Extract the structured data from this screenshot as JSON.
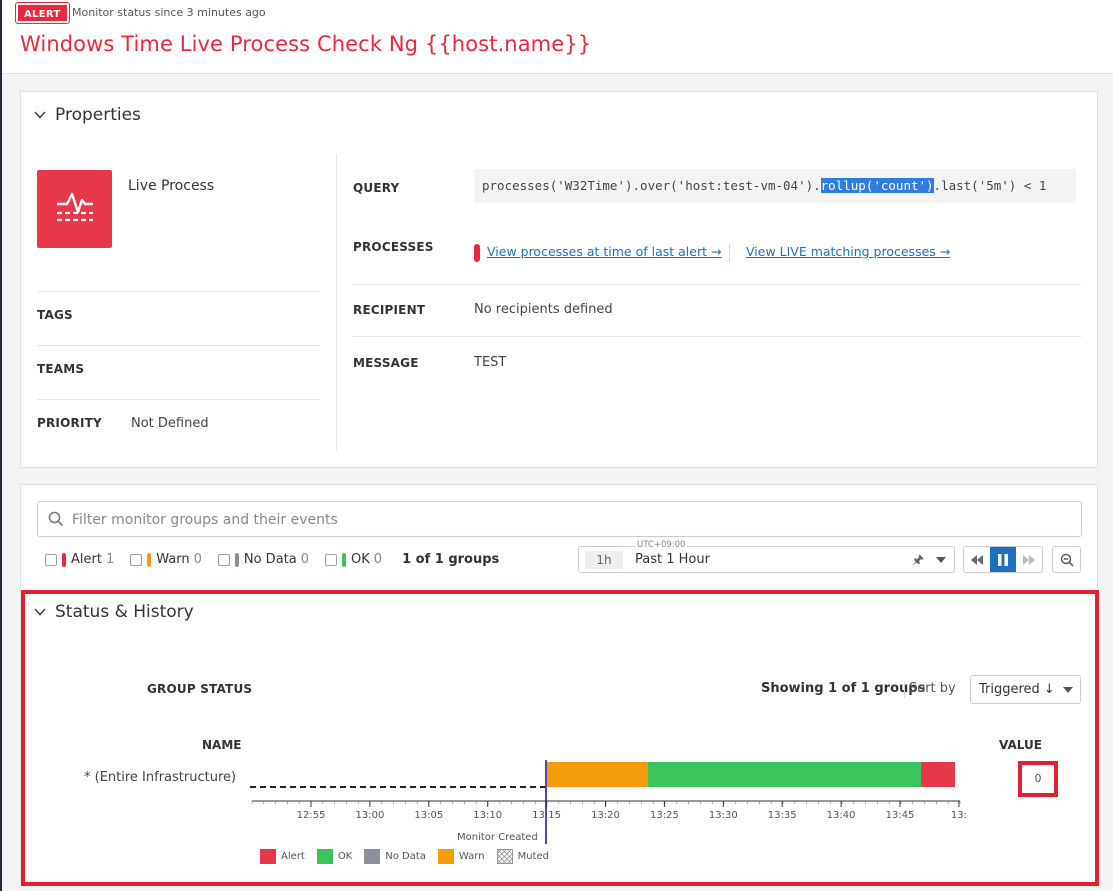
{
  "header": {
    "badge": "ALERT",
    "status_since": "Monitor status since 3 minutes ago",
    "title": "Windows Time Live Process Check Ng {{host.name}}"
  },
  "properties": {
    "section_title": "Properties",
    "monitor_type": "Live Process",
    "tags_label": "TAGS",
    "teams_label": "TEAMS",
    "priority_label": "PRIORITY",
    "priority_value": "Not Defined",
    "query_label": "QUERY",
    "query_pre": "processes('W32Time').over('host:test-vm-04').",
    "query_highlight": "rollup('count')",
    "query_post": ".last('5m') < 1",
    "processes_label": "PROCESSES",
    "link_last_alert": "View processes at time of last alert →",
    "link_live": "View LIVE matching processes →",
    "recipient_label": "RECIPIENT",
    "recipient_value": "No recipients defined",
    "message_label": "MESSAGE",
    "message_value": "TEST"
  },
  "groups": {
    "search_placeholder": "Filter monitor groups and their events",
    "filters": [
      {
        "label": "Alert",
        "count": "1",
        "color": "#e8293b"
      },
      {
        "label": "Warn",
        "count": "0",
        "color": "#f59e0b"
      },
      {
        "label": "No Data",
        "count": "0",
        "color": "#8b909b"
      },
      {
        "label": "OK",
        "count": "0",
        "color": "#3cc45a"
      }
    ],
    "groups_count": "1 of 1 groups",
    "timezone": "UTC+09:00",
    "range_short": "1h",
    "range_label": "Past 1 Hour"
  },
  "status": {
    "section_title": "Status & History",
    "group_status_label": "GROUP STATUS",
    "showing": "Showing 1 of 1 groups",
    "sort_by_label": "Sort by",
    "sort_value": "Triggered ↓",
    "name_header": "NAME",
    "value_header": "VALUE",
    "row_name": "* (Entire Infrastructure)",
    "row_value": "0",
    "monitor_created": "Monitor Created",
    "ticks": [
      "12:55",
      "13:00",
      "13:05",
      "13:10",
      "13:15",
      "13:20",
      "13:25",
      "13:30",
      "13:35",
      "13:40",
      "13:45",
      "13:"
    ],
    "legend": [
      {
        "label": "Alert",
        "color": "#e8394a"
      },
      {
        "label": "OK",
        "color": "#3cc45a"
      },
      {
        "label": "No Data",
        "color": "#8b909b"
      },
      {
        "label": "Warn",
        "color": "#f59e0b"
      },
      {
        "label": "Muted",
        "color": "hatch"
      }
    ]
  }
}
